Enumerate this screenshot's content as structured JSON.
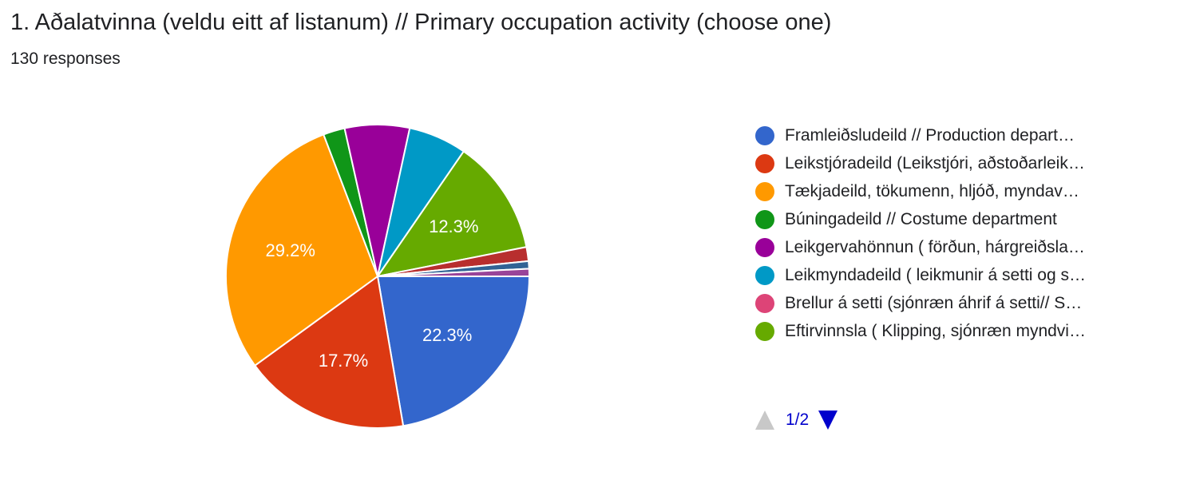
{
  "header": {
    "title": "1. Aðalatvinna (veldu eitt af listanum) // Primary occupation activity (choose one)",
    "subtitle": "130 responses"
  },
  "pager": {
    "text": "1/2",
    "up_icon": "triangle-up-icon",
    "down_icon": "triangle-down-icon"
  },
  "chart_data": {
    "type": "pie",
    "start": "3 o'clock, clockwise",
    "slices": [
      {
        "label": "Framleiðsludeild // Production depart…",
        "value": 22.3,
        "data_label": "22.3%",
        "color": "#3366cc"
      },
      {
        "label": "Leikstjóradeild (Leikstjóri, aðstoðarleik…",
        "value": 17.7,
        "data_label": "17.7%",
        "color": "#dc3912"
      },
      {
        "label": "Tækjadeild, tökumenn, hljóð, myndav…",
        "value": 29.2,
        "data_label": "29.2%",
        "color": "#ff9900"
      },
      {
        "label": "Búningadeild // Costume department",
        "value": 2.3,
        "data_label": "",
        "color": "#109618"
      },
      {
        "label": "Leikgervahönnun ( förðun, hárgreiðsla…",
        "value": 6.9,
        "data_label": "",
        "color": "#990099"
      },
      {
        "label": "Leikmyndadeild ( leikmunir á setti og s…",
        "value": 6.2,
        "data_label": "",
        "color": "#0099c6"
      },
      {
        "label": "Brellur á setti (sjónræn áhrif á setti// S…",
        "value": 0,
        "data_label": "",
        "color": "#dd4477"
      },
      {
        "label": "Eftirvinnsla ( Klipping, sjónræn myndvi…",
        "value": 12.3,
        "data_label": "12.3%",
        "color": "#66aa00"
      },
      {
        "label": "",
        "value": 1.5,
        "data_label": "",
        "color": "#b82e2e"
      },
      {
        "label": "",
        "value": 0.8,
        "data_label": "",
        "color": "#316395"
      },
      {
        "label": "",
        "value": 0.8,
        "data_label": "",
        "color": "#994499"
      }
    ],
    "legend_count": 8
  }
}
